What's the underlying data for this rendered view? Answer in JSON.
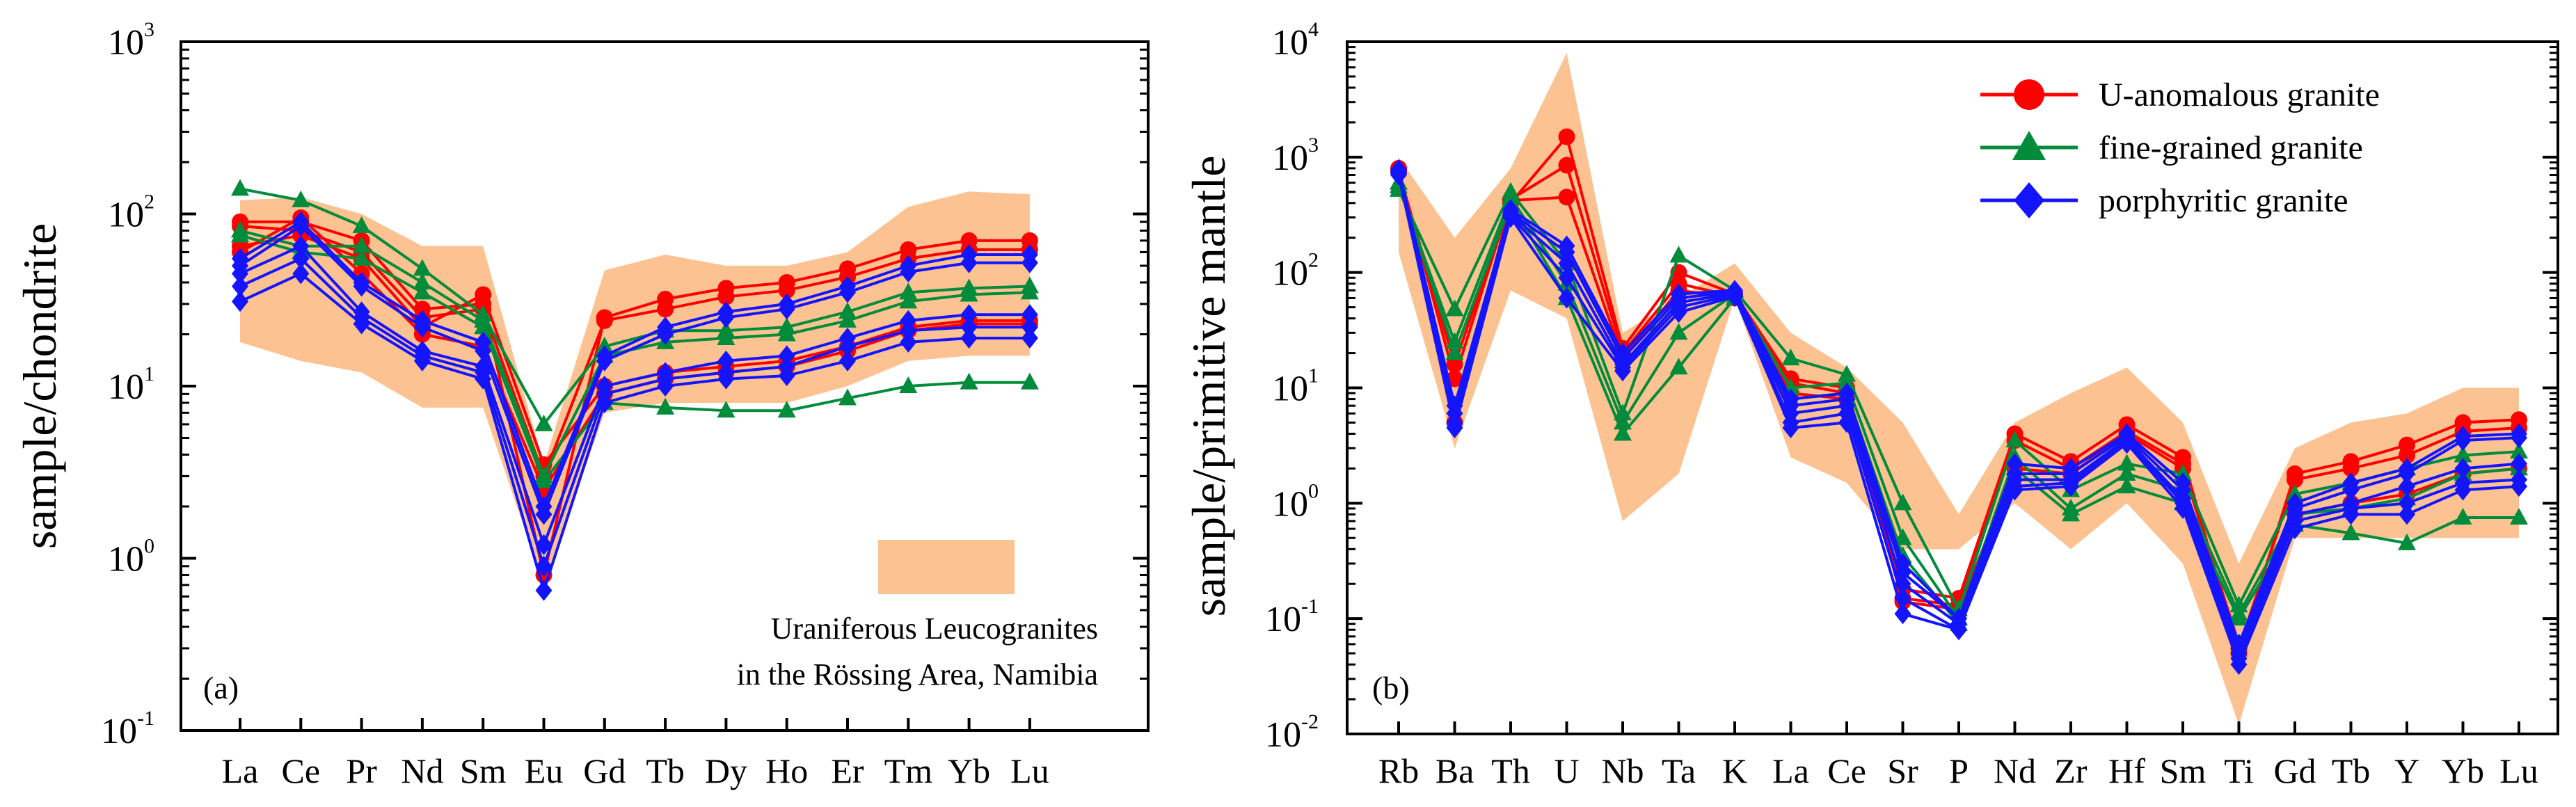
{
  "colors": {
    "u_anomalous": "#ff0000",
    "fine_grained": "#008c3a",
    "porphyritic": "#1414ff",
    "band": "#fcc291"
  },
  "chart_data": [
    {
      "type": "line",
      "panel_label": "(a)",
      "ylabel": "sample/chondrite",
      "yscale": "log",
      "ylim": [
        0.1,
        1000
      ],
      "yticks": [
        {
          "base": "10",
          "exp": "-1",
          "value": 0.1
        },
        {
          "base": "10",
          "exp": "0",
          "value": 1
        },
        {
          "base": "10",
          "exp": "1",
          "value": 10
        },
        {
          "base": "10",
          "exp": "2",
          "value": 100
        },
        {
          "base": "10",
          "exp": "3",
          "value": 1000
        }
      ],
      "categories": [
        "La",
        "Ce",
        "Pr",
        "Nd",
        "Sm",
        "Eu",
        "Gd",
        "Tb",
        "Dy",
        "Ho",
        "Er",
        "Tm",
        "Yb",
        "Lu"
      ],
      "band": {
        "label_line1": "Uraniferous Leucogranites",
        "label_line2": "in the Rössing Area, Namibia",
        "upper": [
          120,
          125,
          100,
          65,
          65,
          3.5,
          47,
          58,
          50,
          50,
          60,
          110,
          135,
          130
        ],
        "lower": [
          18,
          14,
          12,
          7.5,
          7.5,
          0.7,
          7,
          8,
          8,
          8,
          10,
          14,
          15,
          15
        ]
      },
      "series": [
        {
          "name": "U-anomalous granite",
          "group": "u_anomalous",
          "marker": "circle",
          "values": [
            90,
            90,
            70,
            28,
            30,
            0.8,
            25,
            32,
            37,
            40,
            48,
            62,
            70,
            70
          ]
        },
        {
          "name": "U-anomalous granite",
          "group": "u_anomalous",
          "marker": "circle",
          "values": [
            85,
            80,
            60,
            25,
            28,
            3.0,
            24,
            28,
            33,
            36,
            43,
            55,
            62,
            62
          ]
        },
        {
          "name": "U-anomalous granite",
          "group": "u_anomalous",
          "marker": "circle",
          "values": [
            65,
            75,
            55,
            22,
            34,
            3.5,
            10,
            12,
            13,
            14,
            17,
            22,
            24,
            24
          ]
        },
        {
          "name": "U-anomalous granite",
          "group": "u_anomalous",
          "marker": "circle",
          "values": [
            60,
            95,
            45,
            20,
            17,
            2.5,
            9,
            11,
            12,
            13,
            16,
            21,
            23,
            23
          ]
        },
        {
          "name": "fine-grained granite",
          "group": "fine_grained",
          "marker": "triangle",
          "values": [
            140,
            120,
            85,
            48,
            26,
            6,
            17,
            21,
            21,
            22,
            27,
            35,
            37,
            38
          ]
        },
        {
          "name": "fine-grained granite",
          "group": "fine_grained",
          "marker": "triangle",
          "values": [
            80,
            65,
            65,
            40,
            24,
            3.0,
            15,
            18,
            19,
            20,
            24,
            31,
            34,
            35
          ]
        },
        {
          "name": "fine-grained granite",
          "group": "fine_grained",
          "marker": "triangle",
          "values": [
            75,
            60,
            55,
            35,
            22,
            2.8,
            8,
            7.5,
            7.2,
            7.2,
            8.5,
            10,
            10.5,
            10.5
          ]
        },
        {
          "name": "porphyritic granite",
          "group": "porphyritic",
          "marker": "diamond",
          "values": [
            55,
            90,
            40,
            24,
            18,
            2.0,
            15,
            22,
            27,
            30,
            38,
            50,
            58,
            58
          ]
        },
        {
          "name": "porphyritic granite",
          "group": "porphyritic",
          "marker": "diamond",
          "values": [
            50,
            85,
            38,
            22,
            16,
            1.8,
            14,
            20,
            25,
            28,
            35,
            46,
            52,
            52
          ]
        },
        {
          "name": "porphyritic granite",
          "group": "porphyritic",
          "marker": "diamond",
          "values": [
            45,
            65,
            27,
            16,
            13,
            1.2,
            10,
            12,
            14,
            15,
            19,
            24,
            26,
            26
          ]
        },
        {
          "name": "porphyritic granite",
          "group": "porphyritic",
          "marker": "diamond",
          "values": [
            38,
            55,
            25,
            15,
            12,
            0.9,
            9,
            11,
            12,
            13,
            17,
            21,
            22,
            22
          ]
        },
        {
          "name": "porphyritic granite",
          "group": "porphyritic",
          "marker": "diamond",
          "values": [
            31,
            45,
            23,
            14,
            11,
            0.65,
            8,
            10,
            11,
            11.5,
            14,
            18,
            19,
            19
          ]
        }
      ]
    },
    {
      "type": "line",
      "panel_label": "(b)",
      "ylabel": "sample/primitive mantle",
      "yscale": "log",
      "ylim": [
        0.01,
        10000
      ],
      "yticks": [
        {
          "base": "10",
          "exp": "-2",
          "value": 0.01
        },
        {
          "base": "10",
          "exp": "-1",
          "value": 0.1
        },
        {
          "base": "10",
          "exp": "0",
          "value": 1
        },
        {
          "base": "10",
          "exp": "1",
          "value": 10
        },
        {
          "base": "10",
          "exp": "2",
          "value": 100
        },
        {
          "base": "10",
          "exp": "3",
          "value": 1000
        },
        {
          "base": "10",
          "exp": "4",
          "value": 10000
        }
      ],
      "categories": [
        "Rb",
        "Ba",
        "Th",
        "U",
        "Nb",
        "Ta",
        "K",
        "La",
        "Ce",
        "Sr",
        "P",
        "Nd",
        "Zr",
        "Hf",
        "Sm",
        "Ti",
        "Gd",
        "Tb",
        "Y",
        "Yb",
        "Lu"
      ],
      "legend": [
        {
          "label": "U-anomalous granite",
          "group": "u_anomalous",
          "marker": "circle"
        },
        {
          "label": "fine-grained granite",
          "group": "fine_grained",
          "marker": "triangle"
        },
        {
          "label": "porphyritic granite",
          "group": "porphyritic",
          "marker": "diamond"
        }
      ],
      "band": {
        "upper": [
          1000,
          200,
          800,
          8000,
          30,
          60,
          120,
          30,
          15,
          5,
          0.8,
          5,
          9,
          15,
          5,
          0.3,
          3,
          5,
          6,
          10,
          10
        ],
        "lower": [
          150,
          3,
          70,
          40,
          0.7,
          1.8,
          60,
          2.5,
          1.5,
          0.4,
          0.4,
          1,
          0.4,
          1,
          0.3,
          0.012,
          0.5,
          0.5,
          0.5,
          0.5,
          0.5
        ]
      },
      "series": [
        {
          "name": "U-anomalous granite",
          "group": "u_anomalous",
          "marker": "circle",
          "values": [
            800,
            5,
            400,
            1500,
            22,
            100,
            65,
            12,
            10,
            0.18,
            0.15,
            4,
            2.3,
            4.8,
            2.5,
            0.05,
            1.8,
            2.3,
            3.2,
            5.0,
            5.3
          ]
        },
        {
          "name": "U-anomalous granite",
          "group": "u_anomalous",
          "marker": "circle",
          "values": [
            780,
            12,
            430,
            850,
            20,
            80,
            62,
            11,
            9,
            0.15,
            0.13,
            3.5,
            2.0,
            4.2,
            2.2,
            0.055,
            1.6,
            2.0,
            2.6,
            4.2,
            4.5
          ]
        },
        {
          "name": "U-anomalous granite",
          "group": "u_anomalous",
          "marker": "circle",
          "values": [
            750,
            16,
            420,
            450,
            18,
            70,
            60,
            9,
            8,
            0.14,
            0.12,
            2.0,
            1.8,
            4.0,
            2.0,
            0.06,
            0.8,
            1.0,
            1.2,
            1.8,
            2.0
          ]
        },
        {
          "name": "fine-grained granite",
          "group": "fine_grained",
          "marker": "triangle",
          "values": [
            520,
            48,
            500,
            120,
            6,
            140,
            70,
            18,
            13,
            1.0,
            0.12,
            3.5,
            1.3,
            2.2,
            1.8,
            0.13,
            1.2,
            1.5,
            2.0,
            2.6,
            2.8
          ]
        },
        {
          "name": "fine-grained granite",
          "group": "fine_grained",
          "marker": "triangle",
          "values": [
            560,
            25,
            450,
            80,
            5,
            30,
            65,
            10,
            11,
            0.5,
            0.1,
            2.5,
            0.9,
            1.8,
            1.3,
            0.11,
            0.8,
            0.9,
            1.1,
            1.8,
            2.0
          ]
        },
        {
          "name": "fine-grained granite",
          "group": "fine_grained",
          "marker": "triangle",
          "values": [
            600,
            20,
            400,
            60,
            4,
            15,
            60,
            8,
            9,
            0.35,
            0.09,
            2.0,
            0.8,
            1.4,
            1.0,
            0.1,
            0.65,
            0.55,
            0.45,
            0.75,
            0.75
          ]
        },
        {
          "name": "porphyritic granite",
          "group": "porphyritic",
          "marker": "diamond",
          "values": [
            780,
            7,
            350,
            170,
            20,
            65,
            70,
            8,
            9,
            0.3,
            0.1,
            2.2,
            2.0,
            4.0,
            1.5,
            0.06,
            1.0,
            1.5,
            2.0,
            3.8,
            4.0
          ]
        },
        {
          "name": "porphyritic granite",
          "group": "porphyritic",
          "marker": "diamond",
          "values": [
            760,
            6,
            330,
            150,
            18,
            60,
            68,
            7,
            8,
            0.25,
            0.1,
            1.8,
            1.8,
            3.8,
            1.3,
            0.055,
            0.9,
            1.3,
            1.8,
            3.5,
            3.7
          ]
        },
        {
          "name": "porphyritic granite",
          "group": "porphyritic",
          "marker": "diamond",
          "values": [
            740,
            5,
            320,
            120,
            16,
            55,
            66,
            6,
            7,
            0.2,
            0.09,
            1.6,
            1.6,
            3.6,
            1.1,
            0.05,
            0.8,
            1.0,
            1.4,
            2.0,
            2.2
          ]
        },
        {
          "name": "porphyritic granite",
          "group": "porphyritic",
          "marker": "diamond",
          "values": [
            720,
            5,
            310,
            90,
            15,
            50,
            64,
            5,
            6,
            0.15,
            0.08,
            1.4,
            1.5,
            3.5,
            1.0,
            0.045,
            0.7,
            0.9,
            1.0,
            1.5,
            1.6
          ]
        },
        {
          "name": "porphyritic granite",
          "group": "porphyritic",
          "marker": "diamond",
          "values": [
            700,
            4.5,
            300,
            60,
            14,
            45,
            62,
            4.5,
            5,
            0.11,
            0.08,
            1.3,
            1.4,
            3.3,
            0.9,
            0.04,
            0.6,
            0.8,
            0.8,
            1.3,
            1.4
          ]
        }
      ]
    }
  ]
}
